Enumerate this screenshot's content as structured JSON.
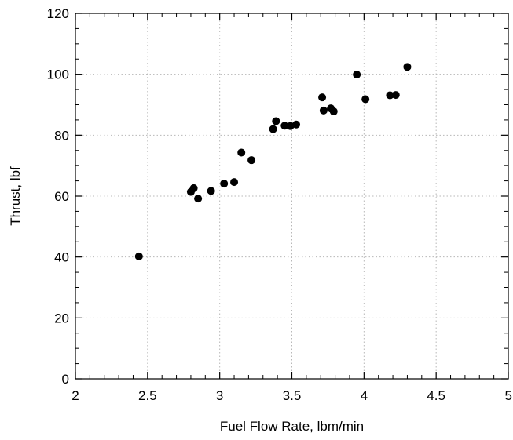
{
  "chart_data": {
    "type": "scatter",
    "title": "",
    "xlabel": "Fuel Flow Rate, lbm/min",
    "ylabel": "Thrust, lbf",
    "xlim": [
      2,
      5
    ],
    "ylim": [
      0,
      120
    ],
    "xticks": [
      2,
      2.5,
      3,
      3.5,
      4,
      4.5,
      5
    ],
    "xtick_labels": [
      "2",
      "2.5",
      "3",
      "3.5",
      "4",
      "4.5",
      "5"
    ],
    "yticks": [
      0,
      20,
      40,
      60,
      80,
      100,
      120
    ],
    "ytick_labels": [
      "0",
      "20",
      "40",
      "60",
      "80",
      "100",
      "120"
    ],
    "grid": true,
    "marker_color": "#000000",
    "points": [
      {
        "x": 2.44,
        "y": 40.2
      },
      {
        "x": 2.8,
        "y": 61.4
      },
      {
        "x": 2.82,
        "y": 62.6
      },
      {
        "x": 2.85,
        "y": 59.2
      },
      {
        "x": 2.94,
        "y": 61.7
      },
      {
        "x": 3.03,
        "y": 64.1
      },
      {
        "x": 3.1,
        "y": 64.6
      },
      {
        "x": 3.15,
        "y": 74.3
      },
      {
        "x": 3.22,
        "y": 71.8
      },
      {
        "x": 3.37,
        "y": 82.0
      },
      {
        "x": 3.39,
        "y": 84.6
      },
      {
        "x": 3.45,
        "y": 83.1
      },
      {
        "x": 3.49,
        "y": 83.0
      },
      {
        "x": 3.53,
        "y": 83.5
      },
      {
        "x": 3.71,
        "y": 92.4
      },
      {
        "x": 3.72,
        "y": 88.1
      },
      {
        "x": 3.77,
        "y": 88.8
      },
      {
        "x": 3.79,
        "y": 87.8
      },
      {
        "x": 3.95,
        "y": 99.9
      },
      {
        "x": 4.01,
        "y": 91.8
      },
      {
        "x": 4.18,
        "y": 93.1
      },
      {
        "x": 4.22,
        "y": 93.2
      },
      {
        "x": 4.3,
        "y": 102.4
      }
    ]
  }
}
